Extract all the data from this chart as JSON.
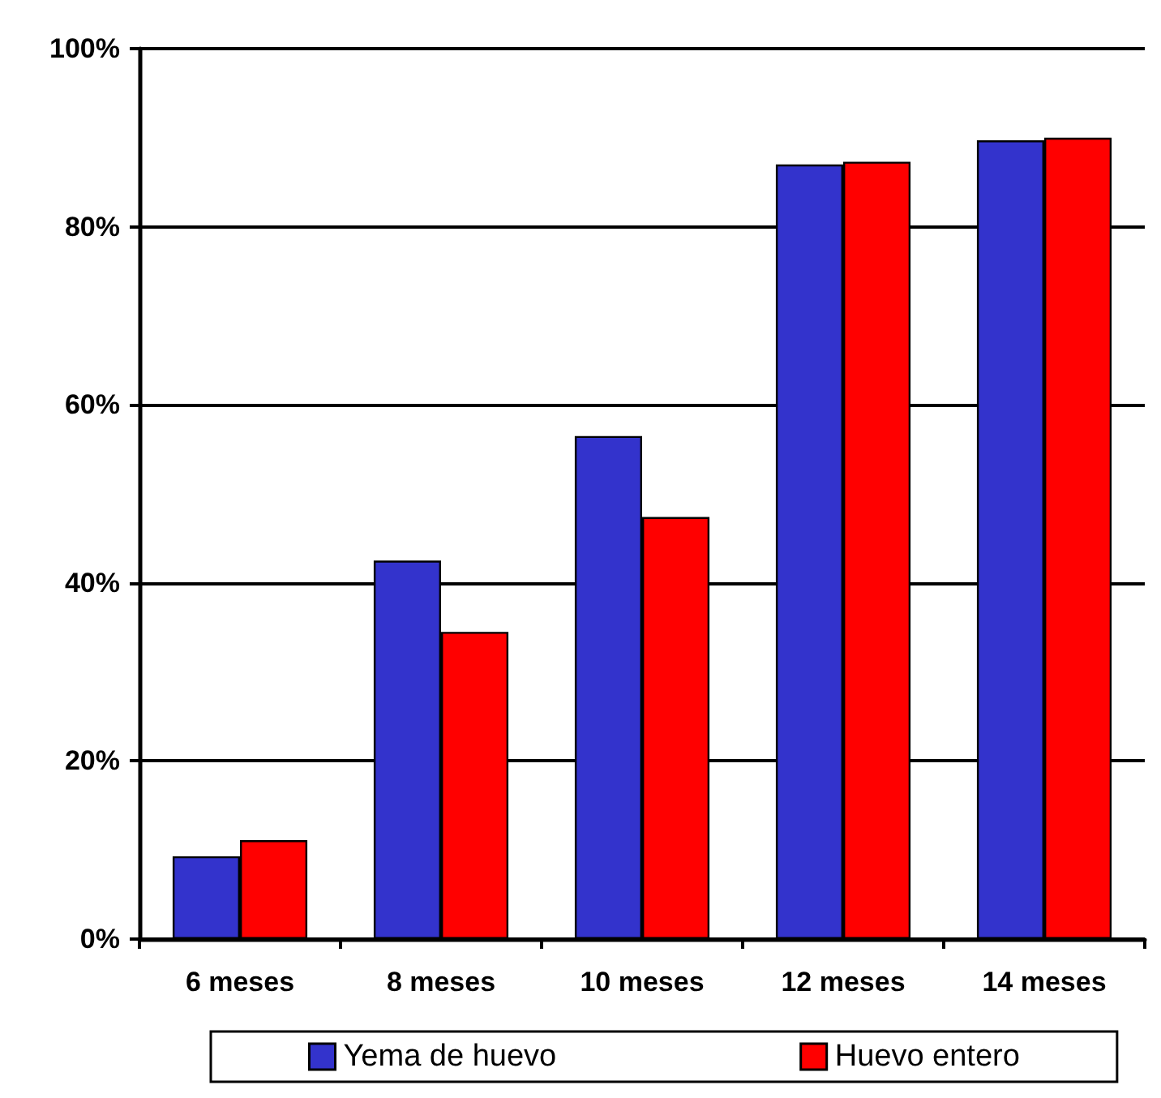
{
  "chart_data": {
    "type": "bar",
    "categories": [
      "6 meses",
      "8 meses",
      "10 meses",
      "12 meses",
      "14 meses"
    ],
    "series": [
      {
        "name": "Yema de huevo",
        "color": "#3333cc",
        "values": [
          9.3,
          42.5,
          56.5,
          87.0,
          89.7
        ]
      },
      {
        "name": "Huevo entero",
        "color": "#ff0000",
        "values": [
          11.1,
          34.5,
          47.4,
          87.3,
          90.0
        ]
      }
    ],
    "ylim": [
      0,
      100
    ],
    "yticks": [
      {
        "value": 0,
        "label": "0%"
      },
      {
        "value": 20,
        "label": "20%"
      },
      {
        "value": 40,
        "label": "40%"
      },
      {
        "value": 60,
        "label": "60%"
      },
      {
        "value": 80,
        "label": "80%"
      },
      {
        "value": 100,
        "label": "100%"
      }
    ],
    "grid": "y",
    "legend": "bottom"
  }
}
